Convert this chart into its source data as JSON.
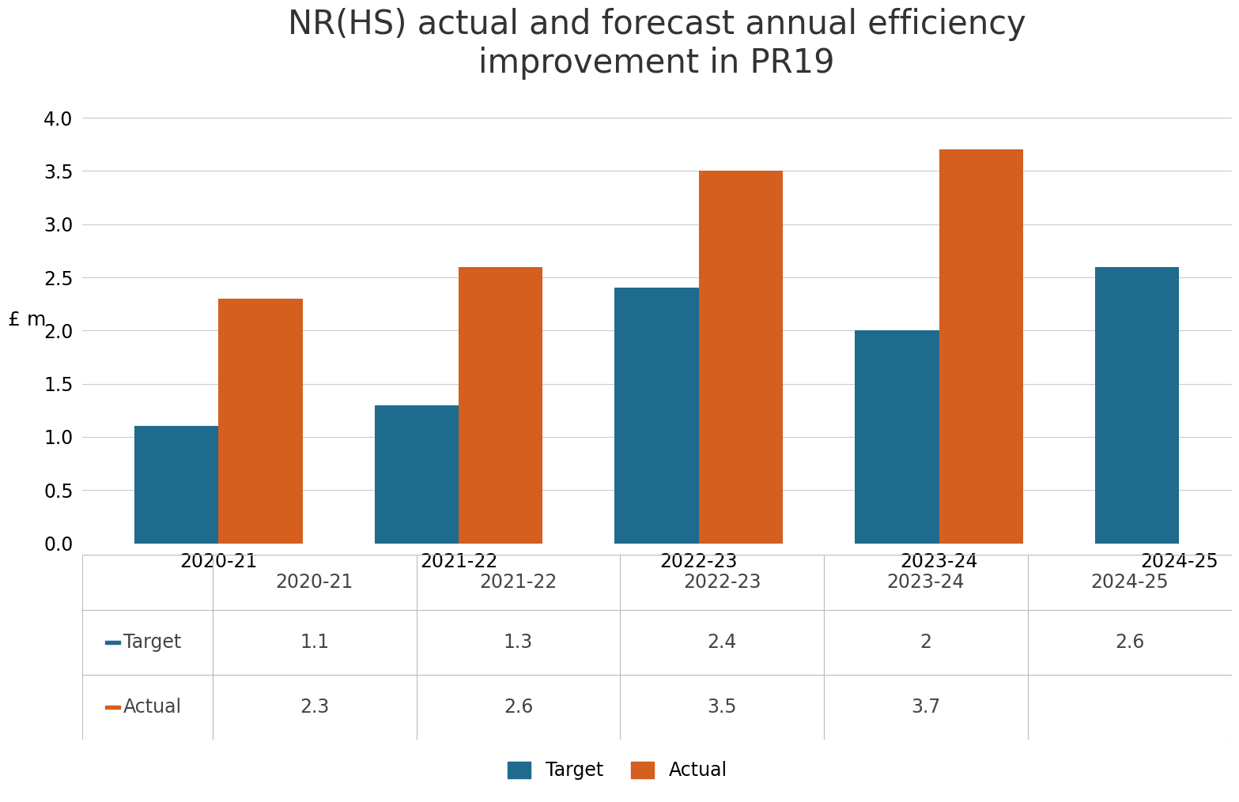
{
  "title": "NR(HS) actual and forecast annual efficiency\nimprovement in PR19",
  "ylabel": "£ m",
  "categories": [
    "2020-21",
    "2021-22",
    "2022-23",
    "2023-24",
    "2024-25"
  ],
  "target_values": [
    1.1,
    1.3,
    2.4,
    2.0,
    2.6
  ],
  "actual_values": [
    2.3,
    2.6,
    3.5,
    3.7,
    null
  ],
  "target_color": "#1f6b8e",
  "actual_color": "#d45f1e",
  "ylim": [
    0,
    4.2
  ],
  "yticks": [
    0,
    0.5,
    1.0,
    1.5,
    2.0,
    2.5,
    3.0,
    3.5,
    4.0
  ],
  "background_color": "#ffffff",
  "grid_color": "#cccccc",
  "table_header_row": [
    "2020-21",
    "2021-22",
    "2022-23",
    "2023-24",
    "2024-25"
  ],
  "table_target_row": [
    "1.1",
    "1.3",
    "2.4",
    "2",
    "2.6"
  ],
  "table_actual_row": [
    "2.3",
    "2.6",
    "3.5",
    "3.7",
    ""
  ],
  "legend_labels": [
    "Target",
    "Actual"
  ],
  "bar_width": 0.35,
  "title_fontsize": 30,
  "axis_fontsize": 18,
  "tick_fontsize": 17,
  "table_fontsize": 17
}
